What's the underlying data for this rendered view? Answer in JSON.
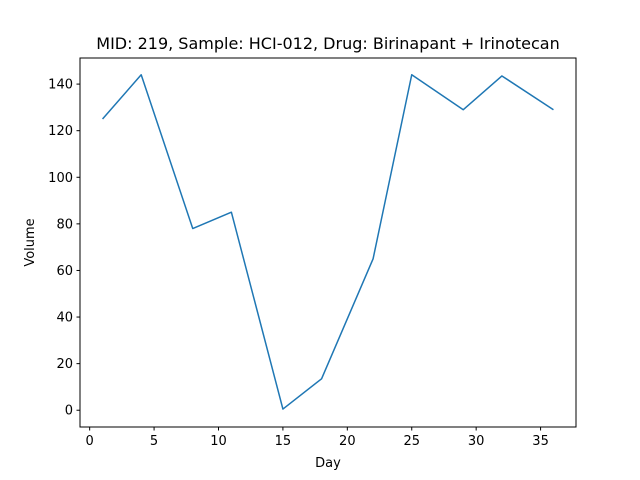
{
  "chart_data": {
    "type": "line",
    "title": "MID: 219, Sample: HCI-012, Drug: Birinapant + Irinotecan",
    "xlabel": "Day",
    "ylabel": "Volume",
    "xlim": [
      -0.75,
      37.75
    ],
    "ylim": [
      -7.2,
      151.2
    ],
    "xticks": [
      0,
      5,
      10,
      15,
      20,
      25,
      30,
      35
    ],
    "yticks": [
      0,
      20,
      40,
      60,
      80,
      100,
      120,
      140
    ],
    "grid": false,
    "series": [
      {
        "color": "#1f77b4",
        "x": [
          1,
          4,
          8,
          11,
          15,
          18,
          22,
          25,
          29,
          32,
          36
        ],
        "y": [
          125,
          144,
          78,
          85,
          0.5,
          13.5,
          65,
          144,
          129,
          143.5,
          129
        ]
      }
    ]
  }
}
